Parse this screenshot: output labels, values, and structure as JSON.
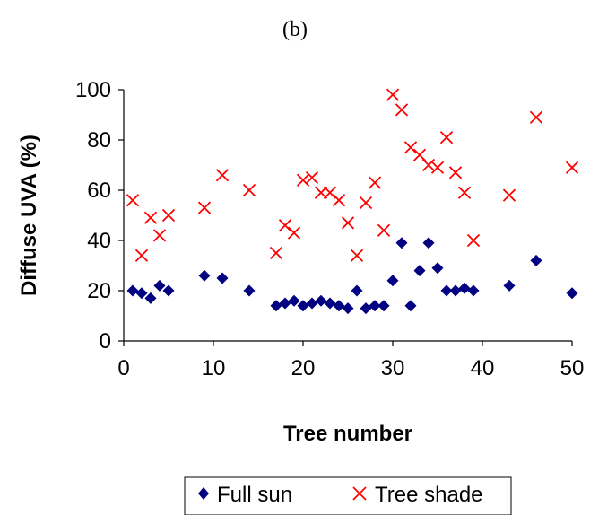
{
  "chart_data": {
    "type": "scatter",
    "title": "(b)",
    "xlabel": "Tree number",
    "ylabel": "Diffuse UVA (%)",
    "xlim": [
      0,
      50
    ],
    "ylim": [
      0,
      100
    ],
    "xticks": [
      "0",
      "10",
      "20",
      "30",
      "40",
      "50"
    ],
    "yticks": [
      "0",
      "20",
      "40",
      "60",
      "80",
      "100"
    ],
    "grid": false,
    "legend": "bottom",
    "series": [
      {
        "name": "Full sun",
        "marker": "diamond",
        "color": "#000080",
        "points": [
          [
            1,
            20
          ],
          [
            2,
            19
          ],
          [
            3,
            17
          ],
          [
            4,
            22
          ],
          [
            5,
            20
          ],
          [
            9,
            26
          ],
          [
            11,
            25
          ],
          [
            14,
            20
          ],
          [
            17,
            14
          ],
          [
            18,
            15
          ],
          [
            19,
            16
          ],
          [
            20,
            14
          ],
          [
            21,
            15
          ],
          [
            22,
            16
          ],
          [
            23,
            15
          ],
          [
            24,
            14
          ],
          [
            25,
            13
          ],
          [
            26,
            20
          ],
          [
            27,
            13
          ],
          [
            28,
            14
          ],
          [
            29,
            14
          ],
          [
            30,
            24
          ],
          [
            31,
            39
          ],
          [
            32,
            14
          ],
          [
            33,
            28
          ],
          [
            34,
            39
          ],
          [
            35,
            29
          ],
          [
            36,
            20
          ],
          [
            37,
            20
          ],
          [
            38,
            21
          ],
          [
            39,
            20
          ],
          [
            43,
            22
          ],
          [
            46,
            32
          ],
          [
            50,
            19
          ]
        ]
      },
      {
        "name": "Tree shade",
        "marker": "x",
        "color": "#ff0000",
        "points": [
          [
            1,
            56
          ],
          [
            2,
            34
          ],
          [
            3,
            49
          ],
          [
            4,
            42
          ],
          [
            5,
            50
          ],
          [
            9,
            53
          ],
          [
            11,
            66
          ],
          [
            14,
            60
          ],
          [
            17,
            35
          ],
          [
            18,
            46
          ],
          [
            19,
            43
          ],
          [
            20,
            64
          ],
          [
            21,
            65
          ],
          [
            22,
            59
          ],
          [
            23,
            59
          ],
          [
            24,
            56
          ],
          [
            25,
            47
          ],
          [
            26,
            34
          ],
          [
            27,
            55
          ],
          [
            28,
            63
          ],
          [
            29,
            44
          ],
          [
            30,
            98
          ],
          [
            31,
            92
          ],
          [
            32,
            77
          ],
          [
            33,
            74
          ],
          [
            34,
            70
          ],
          [
            35,
            69
          ],
          [
            36,
            81
          ],
          [
            37,
            67
          ],
          [
            38,
            59
          ],
          [
            39,
            40
          ],
          [
            43,
            58
          ],
          [
            46,
            89
          ],
          [
            50,
            69
          ]
        ]
      }
    ]
  }
}
